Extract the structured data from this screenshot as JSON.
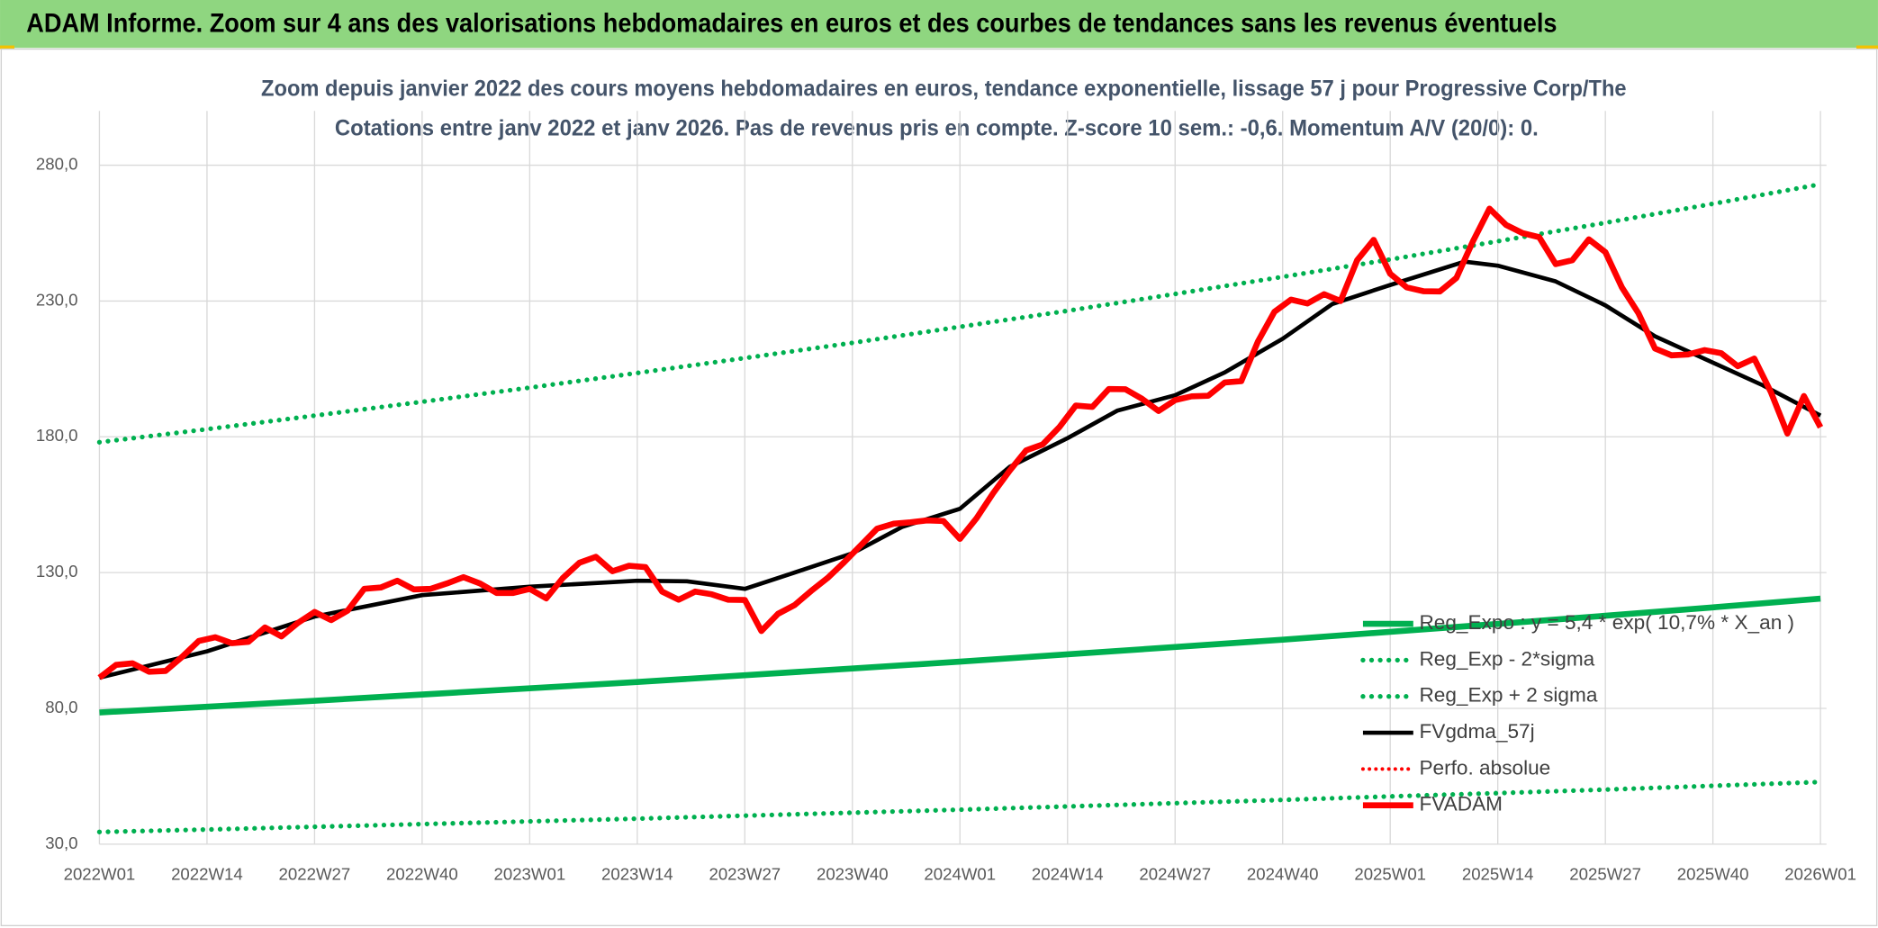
{
  "header": {
    "title": "ADAM Informe. Zoom sur 4 ans des valorisations hebdomadaires en euros et des courbes de tendances sans les revenus éventuels"
  },
  "chart_data": {
    "type": "line",
    "title": "Zoom depuis janvier 2022 des cours moyens hebdomadaires en euros, tendance exponentielle, lissage 57 j pour Progressive Corp/The",
    "subtitle": "Cotations entre janv 2022 et janv 2026. Pas de revenus pris en compte. Z-score 10 sem.: -0,6. Momentum A/V (20/0): 0.",
    "xlim": [
      0,
      208
    ],
    "xticks": [
      {
        "value": 0,
        "label": "2022W01"
      },
      {
        "value": 13,
        "label": "2022W14"
      },
      {
        "value": 26,
        "label": "2022W27"
      },
      {
        "value": 39,
        "label": "2022W40"
      },
      {
        "value": 52,
        "label": "2023W01"
      },
      {
        "value": 65,
        "label": "2023W14"
      },
      {
        "value": 78,
        "label": "2023W27"
      },
      {
        "value": 91,
        "label": "2023W40"
      },
      {
        "value": 104,
        "label": "2024W01"
      },
      {
        "value": 117,
        "label": "2024W14"
      },
      {
        "value": 130,
        "label": "2024W27"
      },
      {
        "value": 143,
        "label": "2024W40"
      },
      {
        "value": 156,
        "label": "2025W01"
      },
      {
        "value": 169,
        "label": "2025W14"
      },
      {
        "value": 182,
        "label": "2025W27"
      },
      {
        "value": 195,
        "label": "2025W40"
      },
      {
        "value": 208,
        "label": "2026W01"
      }
    ],
    "ylim": [
      30,
      300
    ],
    "yticks": [
      {
        "value": 30,
        "label": "30,0"
      },
      {
        "value": 80,
        "label": "80,0"
      },
      {
        "value": 130,
        "label": "130,0"
      },
      {
        "value": 180,
        "label": "180,0"
      },
      {
        "value": 230,
        "label": "230,0"
      },
      {
        "value": 280,
        "label": "280,0"
      }
    ],
    "grid": true,
    "legend": "right",
    "series": [
      {
        "name": "Reg_Expo : y = 5,4 * exp( 10,7% *  X_an )",
        "color": "#00b050",
        "style": "solid",
        "x": [
          0,
          13,
          26,
          39,
          52,
          65,
          78,
          91,
          104,
          117,
          130,
          143,
          156,
          169,
          182,
          195,
          208
        ],
        "values": [
          78.5,
          80.6,
          82.8,
          85.1,
          87.4,
          89.7,
          92.2,
          94.7,
          97.2,
          99.9,
          102.6,
          105.3,
          108.2,
          111.1,
          114.1,
          117.2,
          120.4
        ]
      },
      {
        "name": "Reg_Exp - 2*sigma",
        "color": "#00b050",
        "style": "dotted",
        "x": [
          0,
          13,
          26,
          39,
          52,
          65,
          78,
          91,
          104,
          117,
          130,
          143,
          156,
          169,
          182,
          195,
          208
        ],
        "values": [
          34.5,
          35.4,
          36.4,
          37.4,
          38.4,
          39.4,
          40.5,
          41.6,
          42.7,
          43.9,
          45.1,
          46.3,
          47.6,
          48.8,
          50.1,
          51.5,
          52.9
        ]
      },
      {
        "name": "Reg_Exp + 2 sigma",
        "color": "#00b050",
        "style": "dotted",
        "x": [
          0,
          13,
          26,
          39,
          52,
          65,
          78,
          91,
          104,
          117,
          130,
          143,
          156,
          169,
          182,
          195,
          208
        ],
        "values": [
          178,
          182.8,
          187.8,
          192.9,
          198.1,
          203.5,
          209.0,
          214.6,
          220.5,
          226.4,
          232.6,
          238.9,
          245.3,
          252.0,
          258.8,
          265.8,
          273.0
        ]
      },
      {
        "name": "FVgdma_57j",
        "color": "#000000",
        "style": "solid",
        "x": [
          0,
          13,
          26,
          39,
          52,
          65,
          71,
          78,
          84,
          91,
          97,
          104,
          110,
          117,
          123,
          130,
          136,
          143,
          149,
          156,
          165,
          169,
          176,
          182,
          188,
          195,
          201,
          208
        ],
        "values": [
          91.3,
          101,
          113.8,
          121.7,
          124.8,
          127,
          126.8,
          124,
          130,
          137.1,
          146.8,
          153.5,
          168.9,
          179.5,
          189.6,
          195.3,
          203.7,
          216.1,
          228.9,
          235.9,
          244.5,
          243,
          237.2,
          228.4,
          217,
          207.3,
          199,
          187.8
        ]
      },
      {
        "name": "Perfo. absolue",
        "color": "#ff0000",
        "style": "dotted",
        "x": [],
        "values": []
      },
      {
        "name": "FVADAM",
        "color": "#ff0000",
        "style": "solid",
        "x": [
          0,
          2,
          4,
          6,
          8,
          10,
          12,
          14,
          16,
          18,
          20,
          22,
          24,
          26,
          28,
          30,
          32,
          34,
          36,
          38,
          40,
          42,
          44,
          46,
          48,
          50,
          52,
          54,
          56,
          58,
          60,
          62,
          64,
          66,
          68,
          70,
          72,
          74,
          76,
          78,
          80,
          82,
          84,
          86,
          88,
          90,
          92,
          94,
          96,
          98,
          100,
          102,
          104,
          106,
          108,
          110,
          112,
          114,
          116,
          118,
          120,
          122,
          124,
          126,
          128,
          130,
          132,
          134,
          136,
          138,
          140,
          142,
          144,
          146,
          148,
          150,
          152,
          154,
          156,
          158,
          160,
          162,
          164,
          166,
          168,
          170,
          172,
          174,
          176,
          178,
          180,
          182,
          184,
          186,
          188,
          190,
          192,
          194,
          196,
          198,
          200,
          202,
          204,
          206,
          208
        ],
        "values": [
          91.3,
          96,
          96.6,
          93.5,
          93.8,
          99,
          104.8,
          106.2,
          104,
          104.5,
          109.8,
          106.5,
          111.5,
          115.5,
          112.5,
          116,
          124,
          124.5,
          127,
          123.8,
          124,
          126,
          128.3,
          126,
          122.5,
          122.5,
          124,
          120.5,
          128,
          133.6,
          135.8,
          130.5,
          132.5,
          132,
          123,
          120,
          123,
          122,
          120,
          119.9,
          108.5,
          114.8,
          118,
          123.2,
          128,
          133.8,
          140,
          146.2,
          148,
          148.5,
          149.2,
          149,
          142.4,
          150,
          159.2,
          167.5,
          175,
          177.2,
          183.5,
          191.5,
          191,
          197.6,
          197.5,
          194,
          189.5,
          193.5,
          194.9,
          195.1,
          200,
          200.5,
          215,
          226,
          230.5,
          229.1,
          232.5,
          230,
          245,
          252.5,
          240,
          235,
          233.6,
          233.5,
          238.5,
          252,
          264,
          258,
          255,
          253.5,
          243.6,
          245,
          252.7,
          248,
          235,
          225.5,
          212.5,
          210,
          210.3,
          211.9,
          210.8,
          206,
          208.8,
          196.5,
          181.2,
          195,
          183.5
        ]
      }
    ]
  }
}
